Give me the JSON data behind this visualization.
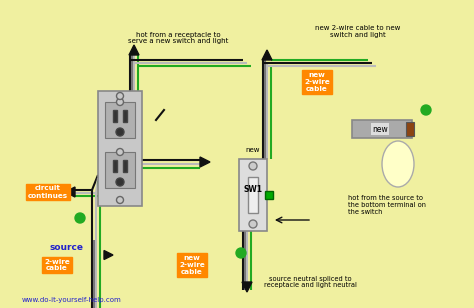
{
  "bg_color": "#f0f0a0",
  "wire_colors": {
    "black": "#111111",
    "white": "#bbbbbb",
    "green": "#22aa22",
    "bare": "#aaaaaa",
    "gray": "#999999"
  },
  "orange_bg": "#ff8800",
  "blue_text": "#2222cc",
  "website": "www.do-it-yourself-help.com",
  "labels": {
    "hot_from_receptacle": "hot from a receptacle to\nserve a new switch and light",
    "new_2wire_top": "new 2-wire cable to new\nswitch and light",
    "circuit_continues": "circuit\ncontinues",
    "source": "source",
    "source_2wire": "2-wire\ncable",
    "new_2wire_bottom": "new\n2-wire\ncable",
    "new_2wire_right": "new\n2-wire\ncable",
    "hot_from_source": "hot from the source to\nthe bottom terminal on\nthe switch",
    "source_neutral": "source neutral spliced to\nreceptacle and light neutral",
    "new_sw": "new",
    "sw1": "SW1",
    "new_light": "new"
  }
}
